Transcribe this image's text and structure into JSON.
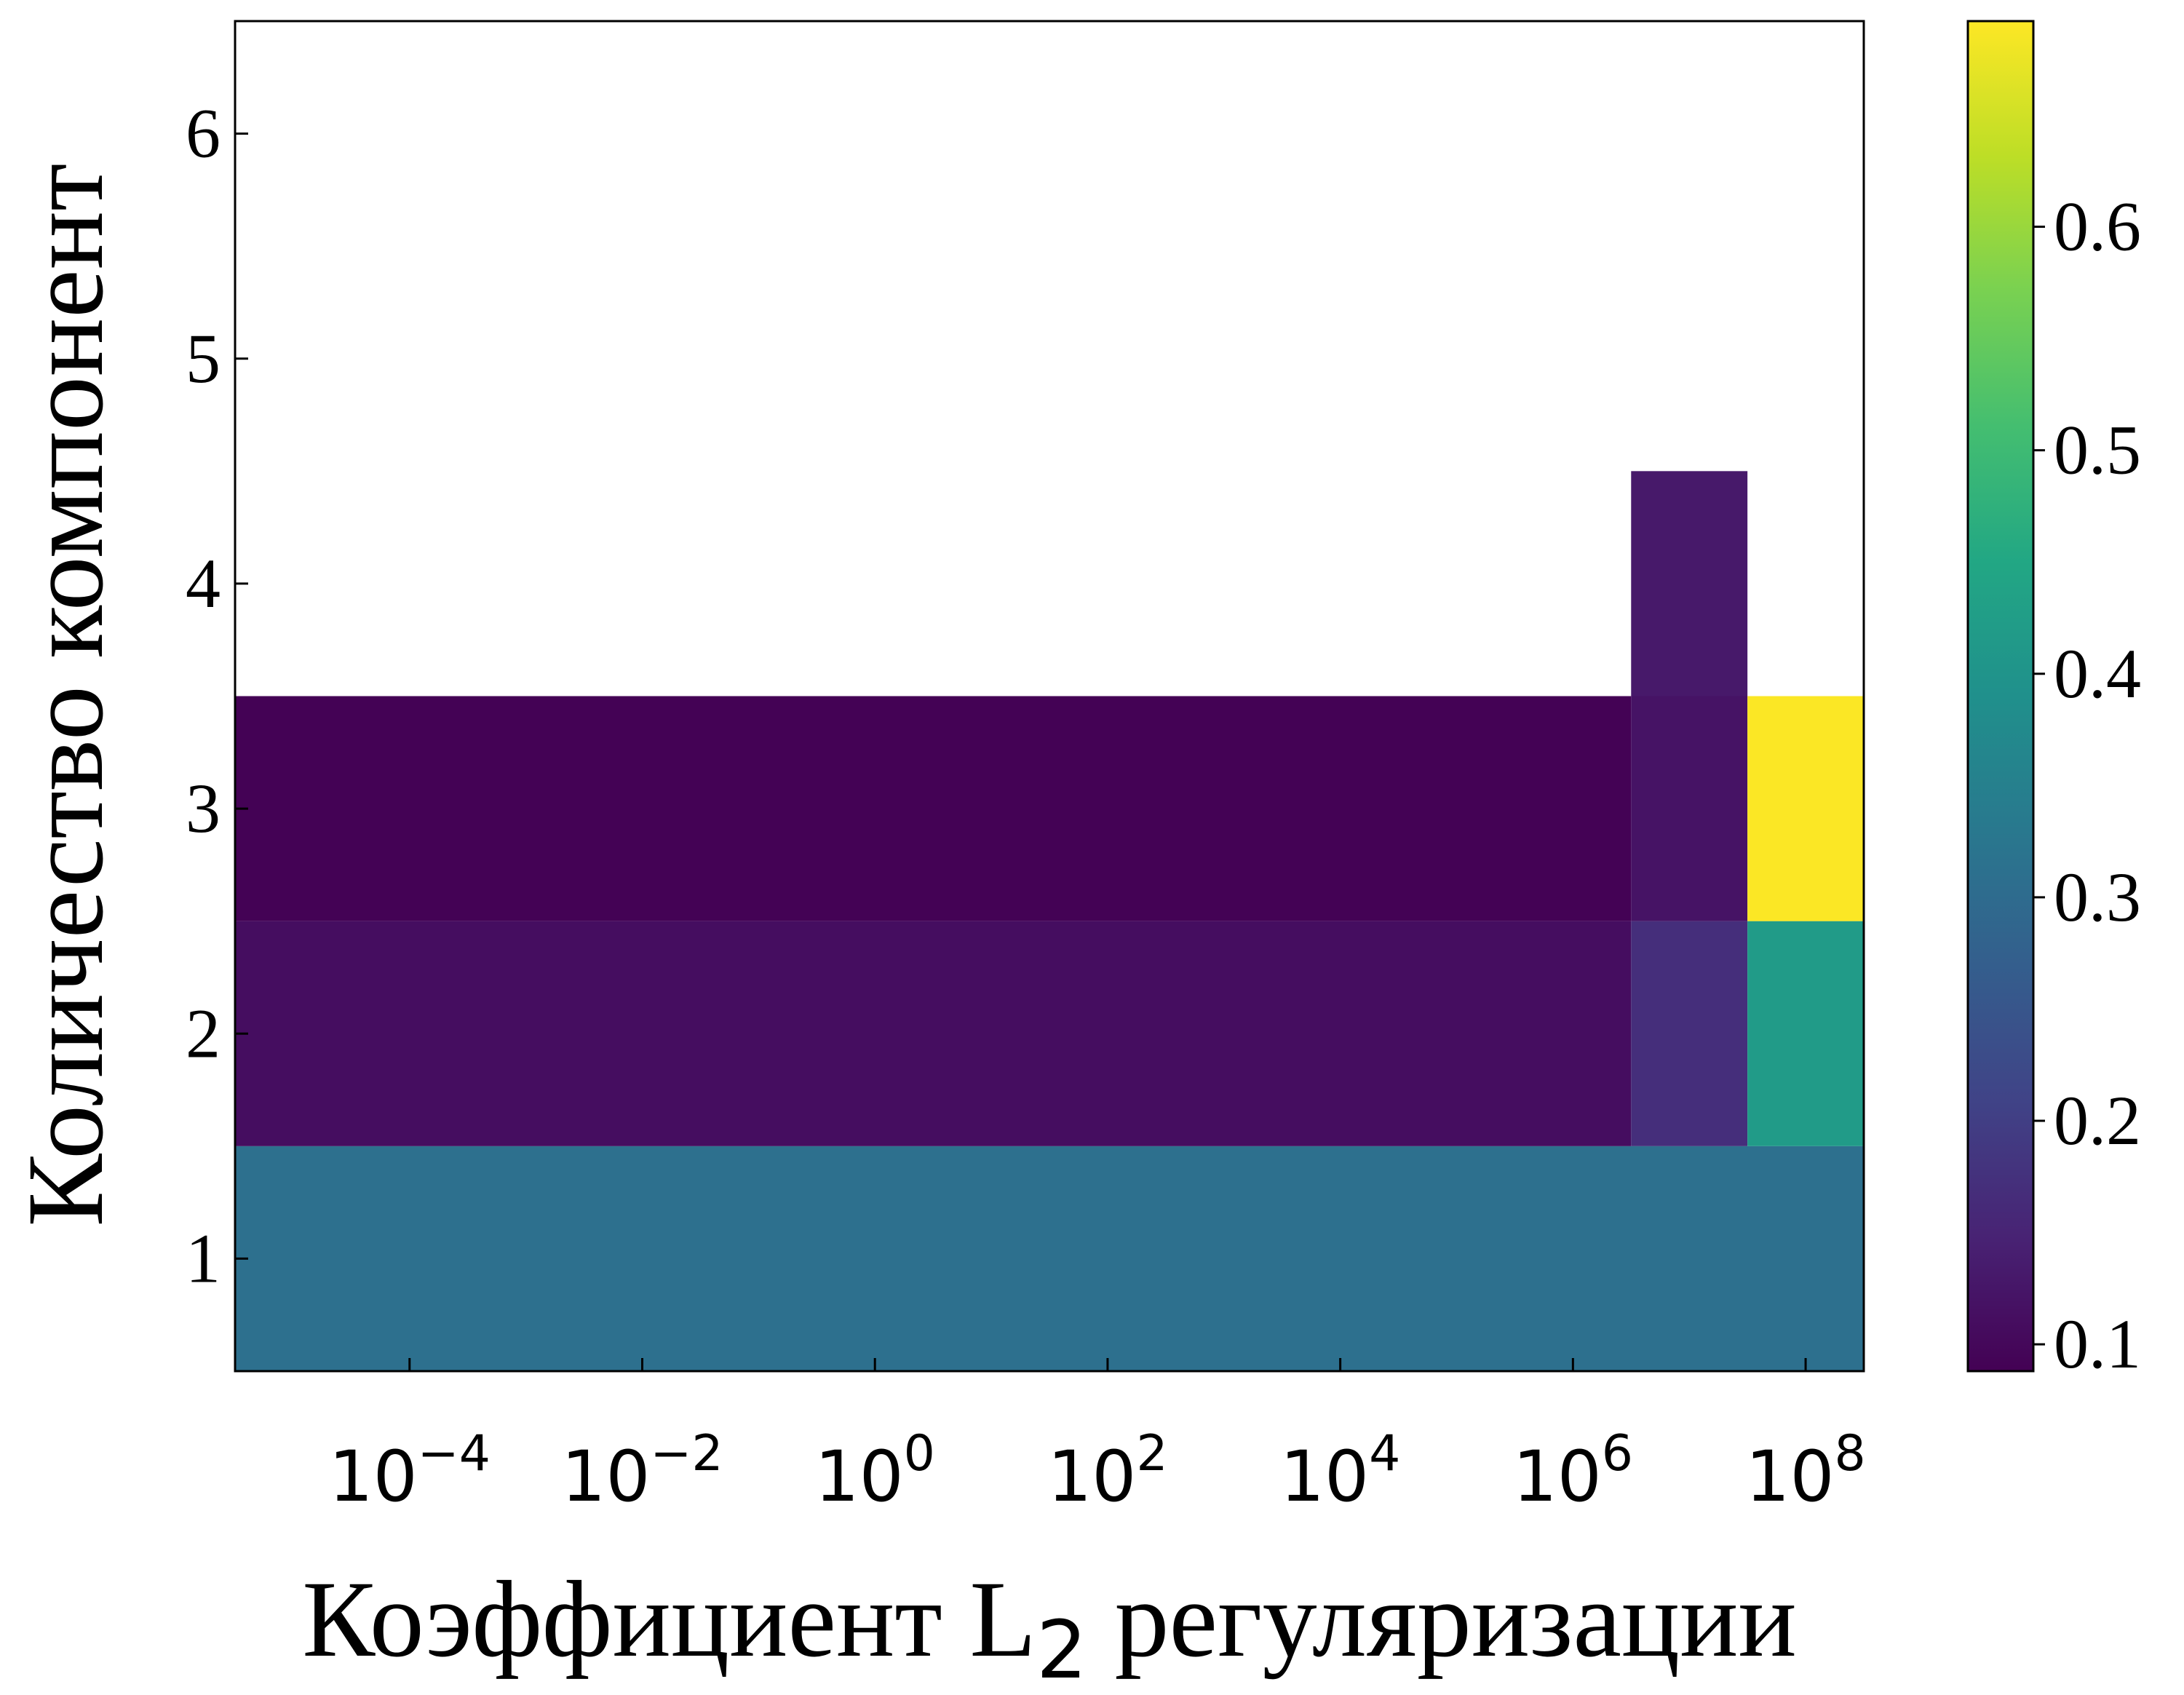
{
  "chart_data": {
    "type": "heatmap",
    "title": "",
    "xlabel": "Коэффициент L",
    "xlabel_sub": "2",
    "xlabel_suffix": " регуляризации",
    "ylabel": "Количество компонент",
    "x_scale": "log",
    "x_tick_labels": [
      {
        "base": "10",
        "exp": "−4"
      },
      {
        "base": "10",
        "exp": "−2"
      },
      {
        "base": "10",
        "exp": "0"
      },
      {
        "base": "10",
        "exp": "2"
      },
      {
        "base": "10",
        "exp": "4"
      },
      {
        "base": "10",
        "exp": "6"
      },
      {
        "base": "10",
        "exp": "8"
      }
    ],
    "y_tick_labels": [
      "1",
      "2",
      "3",
      "4",
      "5",
      "6"
    ],
    "ylim": [
      0.5,
      6.5
    ],
    "x_columns": [
      "1e-5",
      "1e-4",
      "1e-3",
      "1e-2",
      "1e-1",
      "1e0",
      "1e1",
      "1e2",
      "1e3",
      "1e4",
      "1e5",
      "1e6",
      "1e7",
      "1e8"
    ],
    "cells": [
      {
        "x_from": "1e-5",
        "x_to": "1e8",
        "y": 1,
        "value": 0.31
      },
      {
        "x_from": "1e-5",
        "x_to": "1e6",
        "y": 2,
        "value": 0.11
      },
      {
        "x_from": "1e7",
        "x_to": "1e7",
        "y": 2,
        "value": 0.17
      },
      {
        "x_from": "1e8",
        "x_to": "1e8",
        "y": 2,
        "value": 0.42
      },
      {
        "x_from": "1e-5",
        "x_to": "1e6",
        "y": 3,
        "value": 0.09
      },
      {
        "x_from": "1e7",
        "x_to": "1e7",
        "y": 3,
        "value": 0.12
      },
      {
        "x_from": "1e8",
        "x_to": "1e8",
        "y": 3,
        "value": 0.69
      },
      {
        "x_from": "1e7",
        "x_to": "1e7",
        "y": 4,
        "value": 0.13
      }
    ],
    "colorbar": {
      "cmap": "viridis",
      "vmin": 0.088,
      "vmax": 0.692,
      "ticks": [
        0.1,
        0.2,
        0.3,
        0.4,
        0.5,
        0.6
      ],
      "tick_labels": [
        "0.1",
        "0.2",
        "0.3",
        "0.4",
        "0.5",
        "0.6"
      ]
    }
  }
}
